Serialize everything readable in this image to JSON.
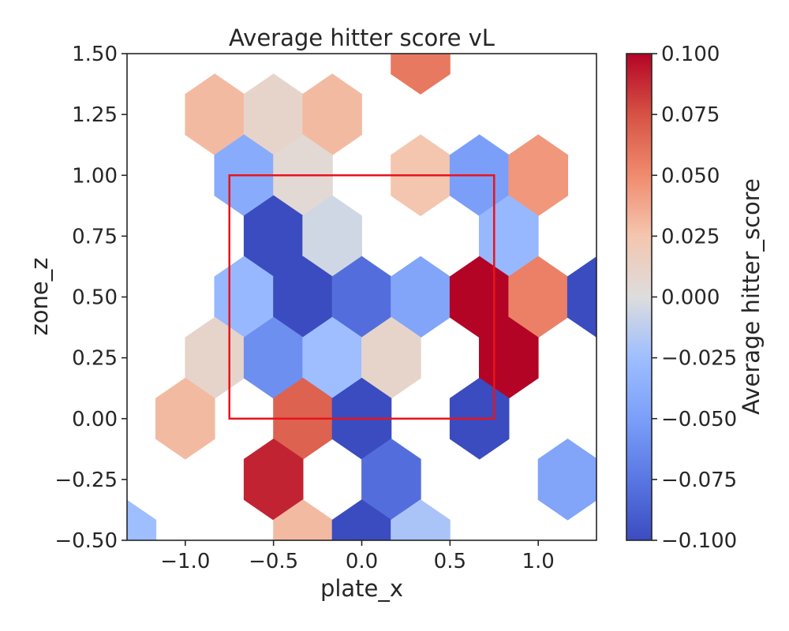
{
  "chart_data": {
    "type": "hexbin",
    "title": "Average hitter score vL",
    "xlabel": "plate_x",
    "ylabel": "zone_z",
    "xlim": [
      -1.33,
      1.33
    ],
    "ylim": [
      -0.5,
      1.5
    ],
    "x_ticks": [
      {
        "value": -1.0,
        "label": "−1.0"
      },
      {
        "value": -0.5,
        "label": "−0.5"
      },
      {
        "value": 0.0,
        "label": "0.0"
      },
      {
        "value": 0.5,
        "label": "0.5"
      },
      {
        "value": 1.0,
        "label": "1.0"
      }
    ],
    "y_ticks": [
      {
        "value": 1.5,
        "label": "1.50"
      },
      {
        "value": 1.25,
        "label": "1.25"
      },
      {
        "value": 1.0,
        "label": "1.00"
      },
      {
        "value": 0.75,
        "label": "0.75"
      },
      {
        "value": 0.5,
        "label": "0.50"
      },
      {
        "value": 0.25,
        "label": "0.25"
      },
      {
        "value": 0.0,
        "label": "0.00"
      },
      {
        "value": -0.25,
        "label": "−0.25"
      },
      {
        "value": -0.5,
        "label": "−0.50"
      }
    ],
    "colorbar": {
      "label": "Average hitter_score",
      "range": [
        -0.1,
        0.1
      ],
      "colormap": "coolwarm",
      "ticks": [
        {
          "value": 0.1,
          "label": "0.100"
        },
        {
          "value": 0.075,
          "label": "0.075"
        },
        {
          "value": 0.05,
          "label": "0.050"
        },
        {
          "value": 0.025,
          "label": "0.025"
        },
        {
          "value": 0.0,
          "label": "0.000"
        },
        {
          "value": -0.025,
          "label": "−0.025"
        },
        {
          "value": -0.05,
          "label": "−0.050"
        },
        {
          "value": -0.075,
          "label": "−0.075"
        },
        {
          "value": -0.1,
          "label": "−0.100"
        }
      ]
    },
    "strike_zone": {
      "x": [
        -0.75,
        0.75
      ],
      "z": [
        0.0,
        1.0
      ],
      "color": "#e8141c"
    },
    "cells": [
      {
        "x": 0.333,
        "z": 1.5,
        "value": 0.058
      },
      {
        "x": -0.833,
        "z": 1.25,
        "value": 0.03
      },
      {
        "x": -0.5,
        "z": 1.25,
        "value": 0.01
      },
      {
        "x": -0.167,
        "z": 1.25,
        "value": 0.03
      },
      {
        "x": -0.667,
        "z": 1.0,
        "value": -0.04
      },
      {
        "x": -0.333,
        "z": 1.0,
        "value": 0.005
      },
      {
        "x": 0.333,
        "z": 1.0,
        "value": 0.025
      },
      {
        "x": 0.667,
        "z": 1.0,
        "value": -0.05
      },
      {
        "x": 1.0,
        "z": 1.0,
        "value": 0.045
      },
      {
        "x": -0.5,
        "z": 0.75,
        "value": -0.1
      },
      {
        "x": -0.167,
        "z": 0.75,
        "value": -0.005
      },
      {
        "x": 0.833,
        "z": 0.75,
        "value": -0.03
      },
      {
        "x": -0.667,
        "z": 0.5,
        "value": -0.03
      },
      {
        "x": -0.333,
        "z": 0.5,
        "value": -0.1
      },
      {
        "x": 0.0,
        "z": 0.5,
        "value": -0.08
      },
      {
        "x": 0.333,
        "z": 0.5,
        "value": -0.045
      },
      {
        "x": 0.667,
        "z": 0.5,
        "value": 0.1
      },
      {
        "x": 1.0,
        "z": 0.5,
        "value": 0.055
      },
      {
        "x": 1.333,
        "z": 0.5,
        "value": -0.1
      },
      {
        "x": -0.833,
        "z": 0.25,
        "value": 0.01
      },
      {
        "x": -0.5,
        "z": 0.25,
        "value": -0.06
      },
      {
        "x": -0.167,
        "z": 0.25,
        "value": -0.025
      },
      {
        "x": 0.167,
        "z": 0.25,
        "value": 0.01
      },
      {
        "x": 0.833,
        "z": 0.25,
        "value": 0.1
      },
      {
        "x": -1.0,
        "z": 0.0,
        "value": 0.03
      },
      {
        "x": -0.333,
        "z": 0.0,
        "value": 0.068
      },
      {
        "x": 0.0,
        "z": 0.0,
        "value": -0.1
      },
      {
        "x": 0.667,
        "z": 0.0,
        "value": -0.1
      },
      {
        "x": -0.5,
        "z": -0.25,
        "value": 0.09
      },
      {
        "x": 0.167,
        "z": -0.25,
        "value": -0.08
      },
      {
        "x": 1.167,
        "z": -0.25,
        "value": -0.045
      },
      {
        "x": -1.333,
        "z": -0.5,
        "value": -0.025
      },
      {
        "x": -0.333,
        "z": -0.5,
        "value": 0.03
      },
      {
        "x": 0.0,
        "z": -0.5,
        "value": -0.1
      },
      {
        "x": 0.333,
        "z": -0.5,
        "value": -0.02
      }
    ]
  }
}
